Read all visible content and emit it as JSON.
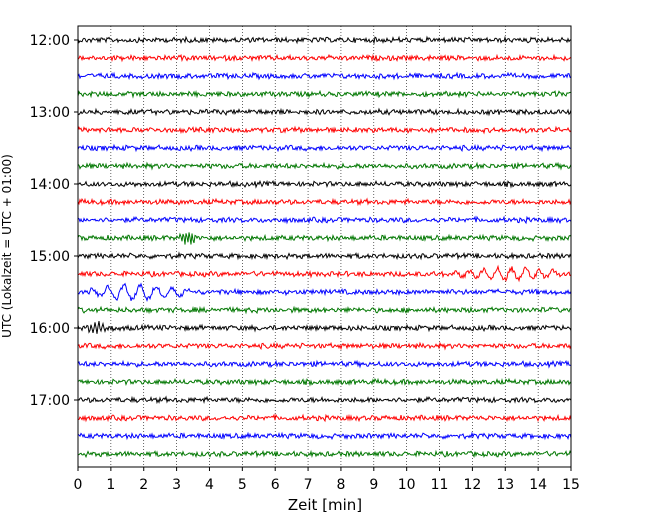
{
  "chart_data": {
    "type": "line",
    "subtype": "helicorder",
    "xlabel": "Zeit  [min]",
    "ylabel": "UTC (Lokalzeit = UTC + 01:00)",
    "xlim": [
      0,
      15
    ],
    "x_ticks": [
      "0",
      "1",
      "2",
      "3",
      "4",
      "5",
      "6",
      "7",
      "8",
      "9",
      "10",
      "11",
      "12",
      "13",
      "14",
      "15"
    ],
    "y_tick_labels": [
      "12:00",
      "13:00",
      "14:00",
      "15:00",
      "16:00",
      "17:00"
    ],
    "grid": "vertical dotted",
    "trace_minutes": 15,
    "trace_colors": [
      "#000000",
      "#ff0000",
      "#0000ff",
      "#007700"
    ],
    "traces": [
      {
        "start": "12:00"
      },
      {
        "start": "12:15"
      },
      {
        "start": "12:30"
      },
      {
        "start": "12:45"
      },
      {
        "start": "13:00"
      },
      {
        "start": "13:15"
      },
      {
        "start": "13:30"
      },
      {
        "start": "13:45"
      },
      {
        "start": "14:00"
      },
      {
        "start": "14:15"
      },
      {
        "start": "14:30"
      },
      {
        "start": "14:45"
      },
      {
        "start": "15:00"
      },
      {
        "start": "15:15"
      },
      {
        "start": "15:30"
      },
      {
        "start": "15:45"
      },
      {
        "start": "16:00"
      },
      {
        "start": "16:15"
      },
      {
        "start": "16:30"
      },
      {
        "start": "16:45"
      },
      {
        "start": "17:00"
      },
      {
        "start": "17:15"
      },
      {
        "start": "17:30"
      },
      {
        "start": "17:45"
      }
    ]
  }
}
